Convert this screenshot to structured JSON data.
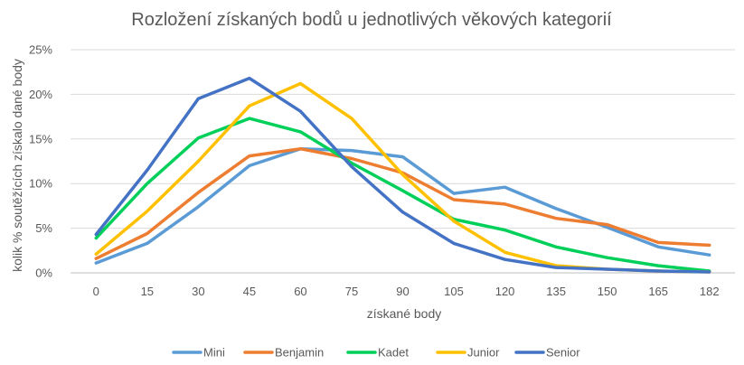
{
  "chart_data": {
    "type": "line",
    "title": "Rozložení získaných bodů u jednotlivých věkových kategorií",
    "xlabel": "získané body",
    "ylabel": "kolik % soutěžících získalo dané body",
    "categories": [
      "0",
      "15",
      "30",
      "45",
      "60",
      "75",
      "90",
      "105",
      "120",
      "135",
      "150",
      "165",
      "182"
    ],
    "y_ticks": [
      "0%",
      "5%",
      "10%",
      "15%",
      "20%",
      "25%"
    ],
    "ylim": [
      0,
      25
    ],
    "grid": true,
    "legend_position": "bottom",
    "series": [
      {
        "name": "Mini",
        "color": "#5b9bd5",
        "values": [
          1.1,
          3.3,
          7.4,
          12.0,
          13.9,
          13.7,
          13.0,
          8.9,
          9.6,
          7.2,
          5.1,
          2.9,
          2.0
        ]
      },
      {
        "name": "Benjamin",
        "color": "#ed7d31",
        "values": [
          1.6,
          4.4,
          9.0,
          13.1,
          13.9,
          12.8,
          11.2,
          8.2,
          7.7,
          6.1,
          5.4,
          3.4,
          3.1
        ]
      },
      {
        "name": "Kadet",
        "color": "#00d05a",
        "values": [
          3.9,
          10.0,
          15.1,
          17.3,
          15.8,
          12.3,
          9.2,
          6.0,
          4.8,
          2.9,
          1.7,
          0.8,
          0.2
        ]
      },
      {
        "name": "Junior",
        "color": "#ffc000",
        "values": [
          2.1,
          6.9,
          12.5,
          18.7,
          21.2,
          17.3,
          11.0,
          5.8,
          2.3,
          0.8,
          0.4,
          0.2,
          0.1
        ]
      },
      {
        "name": "Senior",
        "color": "#4472c4",
        "values": [
          4.3,
          11.5,
          19.5,
          21.8,
          18.1,
          11.9,
          6.8,
          3.3,
          1.5,
          0.6,
          0.4,
          0.2,
          0.1
        ]
      }
    ]
  }
}
